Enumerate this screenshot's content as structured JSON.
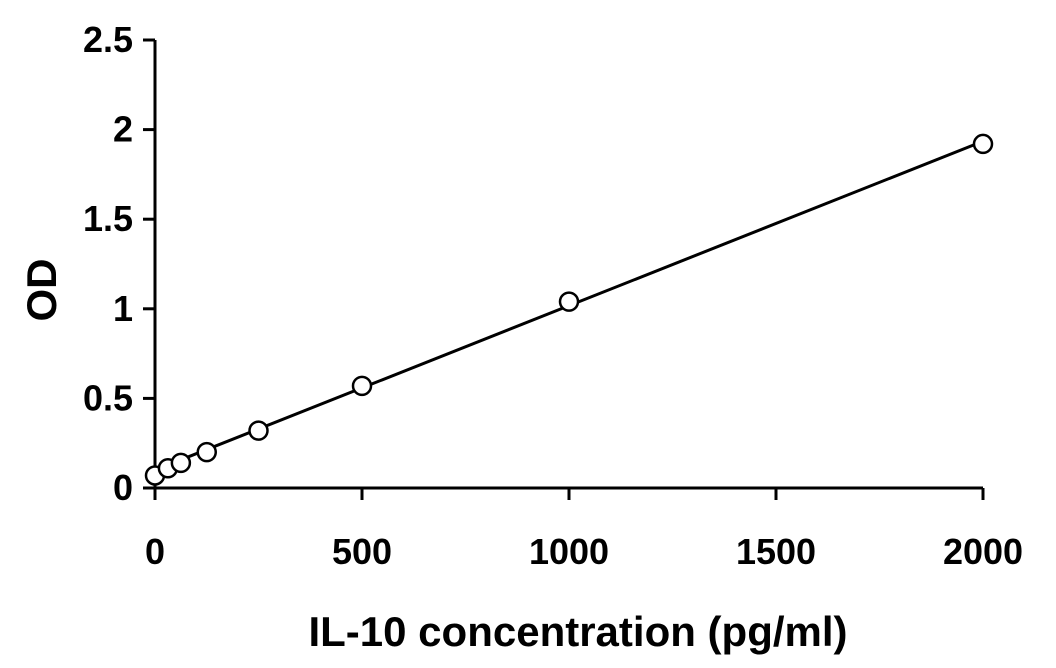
{
  "chart_data": {
    "type": "scatter",
    "xlabel": "IL-10 concentration (pg/ml)",
    "ylabel": "OD",
    "xlim": [
      0,
      2000
    ],
    "ylim": [
      0,
      2.5
    ],
    "x_ticks": [
      "0",
      "500",
      "1000",
      "1500",
      "2000"
    ],
    "y_ticks": [
      "0",
      "0.5",
      "1",
      "1.5",
      "2",
      "2.5"
    ],
    "grid": false,
    "legend": "none",
    "series": [
      {
        "marker": "open-circle",
        "points": [
          {
            "x": 0,
            "y": 0.07
          },
          {
            "x": 31.25,
            "y": 0.11
          },
          {
            "x": 62.5,
            "y": 0.14
          },
          {
            "x": 125,
            "y": 0.2
          },
          {
            "x": 250,
            "y": 0.32
          },
          {
            "x": 500,
            "y": 0.57
          },
          {
            "x": 1000,
            "y": 1.04
          },
          {
            "x": 2000,
            "y": 1.92
          }
        ]
      }
    ],
    "trendline": {
      "type": "linear",
      "x": [
        0,
        2000
      ],
      "y": [
        0.1,
        1.935
      ]
    },
    "colors": {
      "marker_stroke": "#000000",
      "marker_fill": "#ffffff",
      "line": "#000000",
      "axis": "#000000"
    }
  }
}
